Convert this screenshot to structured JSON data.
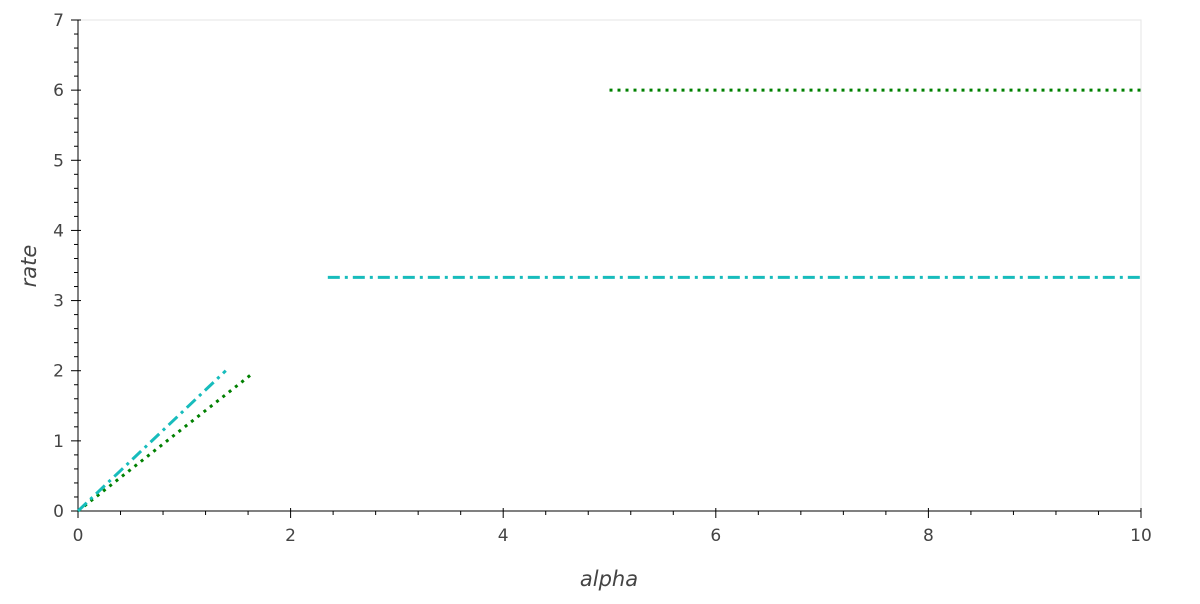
{
  "chart_data": {
    "type": "line",
    "x_label": "alpha",
    "y_label": "rate",
    "xlim": [
      0,
      10
    ],
    "xticks": [
      0,
      2,
      4,
      6,
      8,
      10
    ],
    "xminorticks": [
      0.4,
      0.8,
      1.2,
      1.6,
      2.4,
      2.8,
      3.2,
      3.6,
      4.4,
      4.8,
      5.2,
      5.6,
      6.4,
      6.8,
      7.2,
      7.6,
      8.4,
      8.8,
      9.2,
      9.6
    ],
    "ylim": [
      0,
      7
    ],
    "yticks": [
      0,
      1,
      2,
      3,
      4,
      5,
      6,
      7
    ],
    "yminorticks": [
      0.2,
      0.4,
      0.6,
      0.8,
      1.2,
      1.4,
      1.6,
      1.8,
      2.2,
      2.4,
      2.6,
      2.8,
      3.2,
      3.4,
      3.6,
      3.8,
      4.2,
      4.4,
      4.6,
      4.8,
      5.2,
      5.4,
      5.6,
      5.8,
      6.2,
      6.4,
      6.6,
      6.8
    ],
    "grid": false,
    "series": [
      {
        "color": "#008000",
        "dash": "dotted",
        "x": [
          0,
          1.65,
          null,
          5,
          10
        ],
        "values": [
          0,
          1.97,
          null,
          6,
          6
        ]
      },
      {
        "color": "#17bcbc",
        "dash": "dashdot",
        "x": [
          0,
          1.39,
          null,
          2.35,
          10
        ],
        "values": [
          0,
          2.0,
          null,
          3.33,
          3.33
        ]
      }
    ]
  }
}
